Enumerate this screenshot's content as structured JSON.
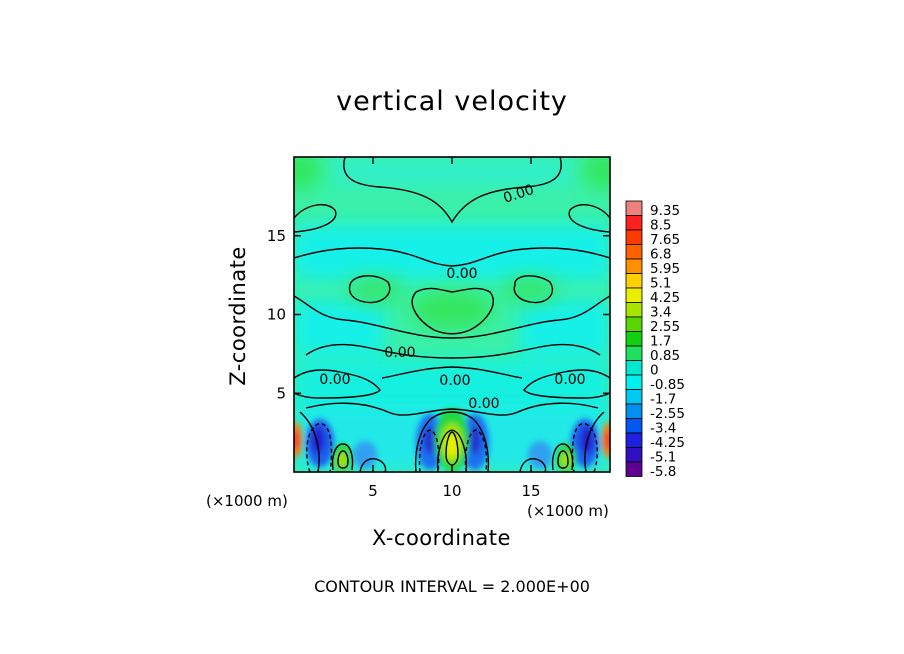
{
  "chart_data": {
    "type": "heatmap",
    "title": "vertical velocity",
    "xlabel": "X-coordinate",
    "ylabel": "Z-coordinate",
    "x_unit_label": "(×1000 m)",
    "x_unit_label_right": "(×1000 m)",
    "xlim": [
      0,
      20
    ],
    "ylim": [
      0,
      20
    ],
    "x_ticks": [
      "5",
      "10",
      "15"
    ],
    "y_ticks": [
      "5",
      "10",
      "15"
    ],
    "contour_labels": [
      "0.00",
      "0.00",
      "0.00",
      "0.00",
      "0.00",
      "0.00",
      "0.00"
    ],
    "colorbar": {
      "levels": [
        "9.35",
        "8.5",
        "7.65",
        "6.8",
        "5.95",
        "5.1",
        "4.25",
        "3.4",
        "2.55",
        "1.7",
        "0.85",
        "0",
        "-0.85",
        "-1.7",
        "-2.55",
        "-3.4",
        "-4.25",
        "-5.1",
        "-5.8"
      ],
      "colors": [
        "#f08080",
        "#ff2020",
        "#ff3a00",
        "#ff6000",
        "#ff9000",
        "#ffd000",
        "#e8f000",
        "#a8e400",
        "#58d800",
        "#10d010",
        "#20e060",
        "#00e8d0",
        "#00f0f0",
        "#00c8f0",
        "#0090f0",
        "#0058f0",
        "#2020e0",
        "#3010c0",
        "#600090"
      ]
    },
    "grid": false,
    "legend": "right colorbar"
  },
  "footer": "CONTOUR INTERVAL = 2.000E+00"
}
